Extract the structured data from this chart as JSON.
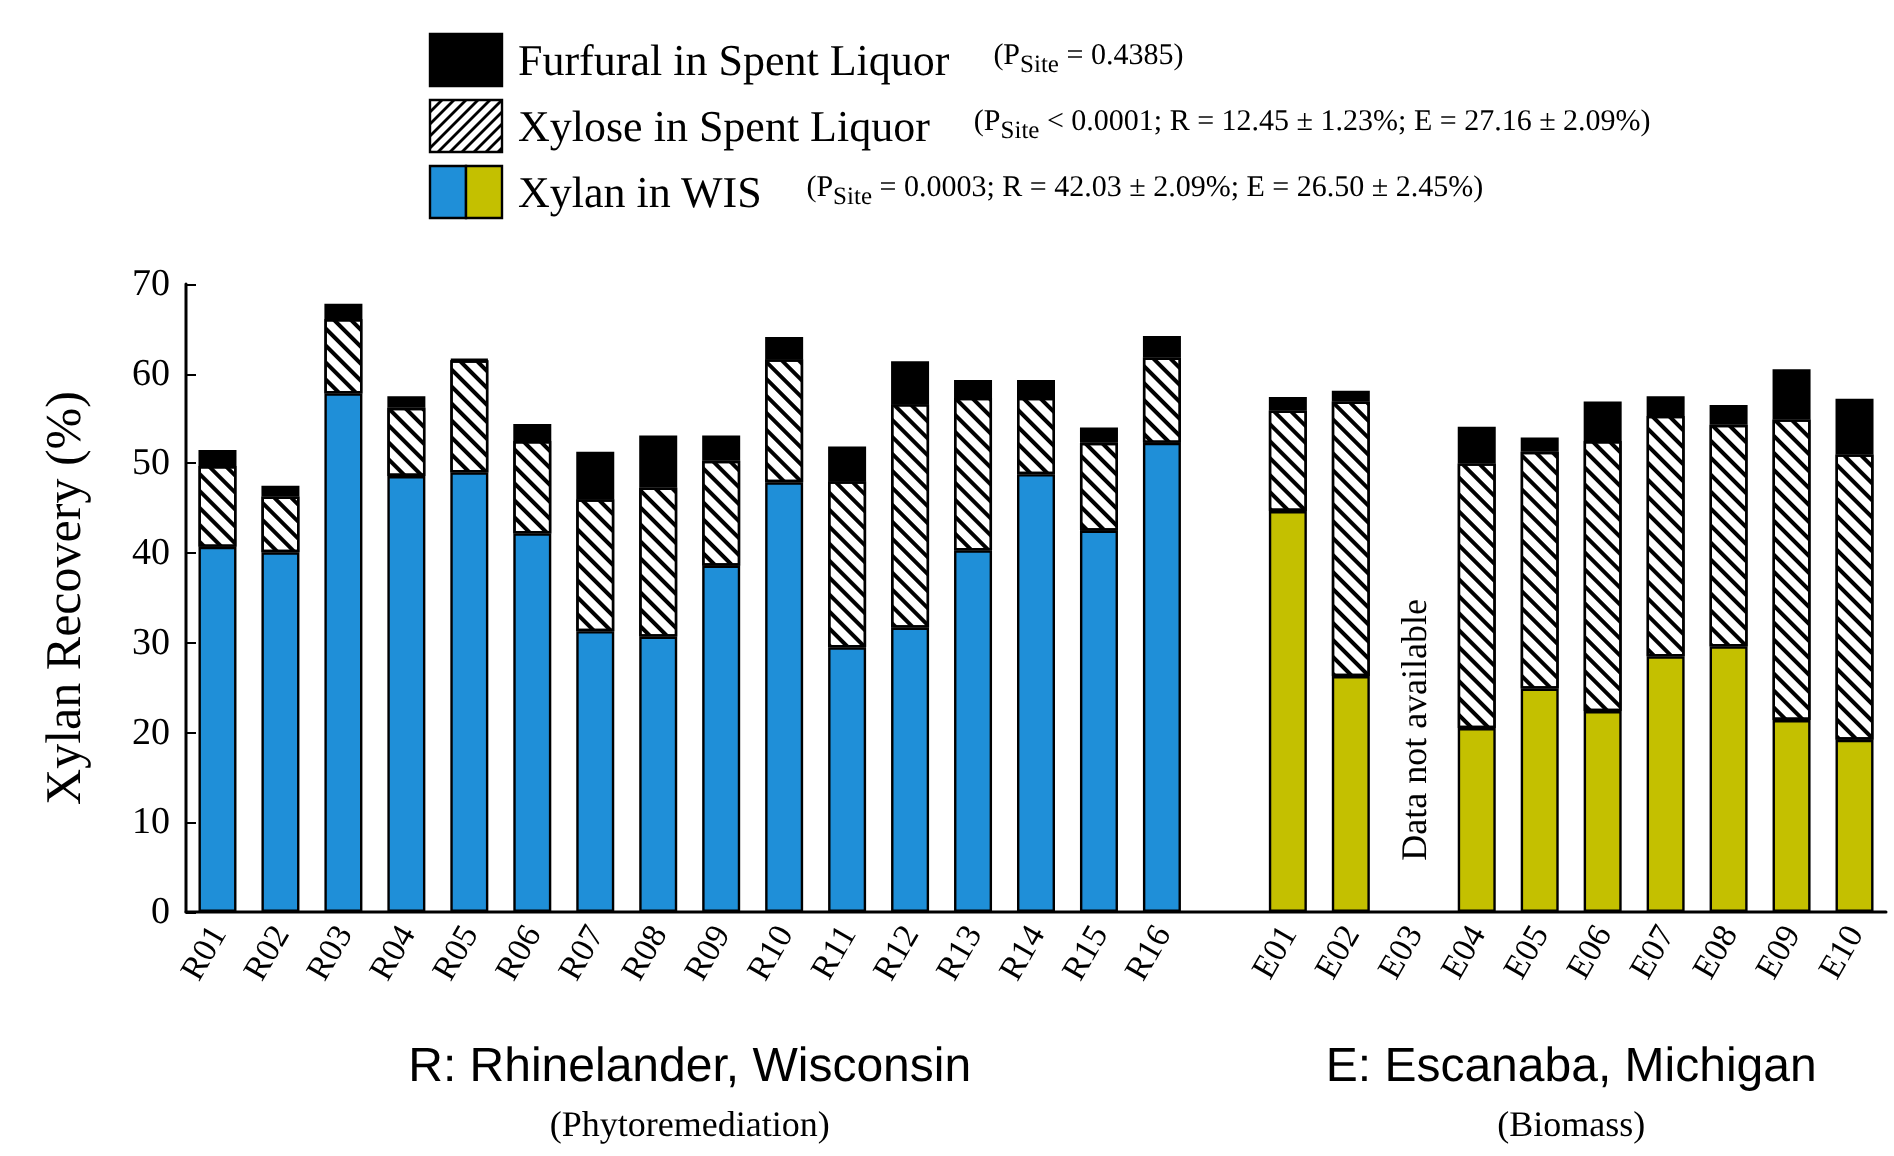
{
  "chart_data": {
    "type": "bar",
    "stacked": true,
    "ylabel": "Xylan Recovery (%)",
    "legend": "top",
    "categories": [
      "R01",
      "R02",
      "R03",
      "R04",
      "R05",
      "R06",
      "R07",
      "R08",
      "R09",
      "R10",
      "R11",
      "R12",
      "R13",
      "R14",
      "R15",
      "R16",
      null,
      "E01",
      "E02",
      "E03",
      "E04",
      "E05",
      "E06",
      "E07",
      "E08",
      "E09",
      "E10"
    ],
    "series": [
      {
        "name": "Xylan in WIS",
        "colors": [
          "#1f8fd8",
          "#1f8fd8",
          "#1f8fd8",
          "#1f8fd8",
          "#1f8fd8",
          "#1f8fd8",
          "#1f8fd8",
          "#1f8fd8",
          "#1f8fd8",
          "#1f8fd8",
          "#1f8fd8",
          "#1f8fd8",
          "#1f8fd8",
          "#1f8fd8",
          "#1f8fd8",
          "#1f8fd8",
          null,
          "#c4c000",
          "#c4c000",
          "#c4c000",
          "#c4c000",
          "#c4c000",
          "#c4c000",
          "#c4c000",
          "#c4c000",
          "#c4c000",
          "#c4c000"
        ],
        "values": [
          40.7,
          40.1,
          57.8,
          48.6,
          49.0,
          42.2,
          31.3,
          30.7,
          38.6,
          47.9,
          29.5,
          31.7,
          40.3,
          48.8,
          42.5,
          52.3,
          null,
          44.7,
          26.3,
          null,
          20.5,
          24.9,
          22.4,
          28.5,
          29.6,
          21.4,
          19.2
        ]
      },
      {
        "name": "Xylose in Spent Liquor",
        "color": "#ffffff",
        "values": [
          9.0,
          6.2,
          8.3,
          7.6,
          12.5,
          10.3,
          14.7,
          16.6,
          11.7,
          13.7,
          18.5,
          24.9,
          17.0,
          8.5,
          9.8,
          9.5,
          null,
          11.2,
          30.6,
          null,
          29.5,
          26.4,
          30.1,
          26.8,
          24.7,
          33.5,
          31.8
        ]
      },
      {
        "name": "Furfural in Spent Liquor",
        "color": "#000000",
        "values": [
          1.8,
          1.2,
          1.7,
          1.3,
          0.1,
          1.9,
          5.3,
          5.8,
          2.8,
          2.5,
          3.9,
          4.8,
          2.0,
          2.0,
          1.7,
          2.4,
          null,
          1.5,
          1.2,
          null,
          4.1,
          1.6,
          4.4,
          2.2,
          2.2,
          5.6,
          6.2
        ]
      }
    ],
    "ylim": [
      0,
      70
    ],
    "yticks": [
      0,
      10,
      20,
      30,
      40,
      50,
      60,
      70
    ],
    "annotations": [
      "(P$_{Site}$ = 0.0003; R = 42.03 ± 2.09%; E = 26.50 ± 2.45%)",
      "(P$_{Site}$ < 0.0001; R = 12.45 ± 1.23%; E = 27.16 ± 2.09%)",
      "(P$_{Site}$ = 0.4385)",
      "R: Rhinelander, Wisconsin",
      "(Phytoremediation)",
      "E: Escanaba, Michigan",
      "(Biomass)",
      "Data not available"
    ]
  }
}
